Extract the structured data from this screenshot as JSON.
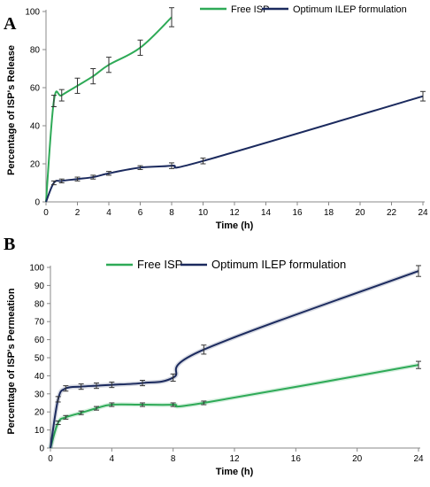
{
  "panels": [
    {
      "label": "A",
      "legend": [
        {
          "name": "Free ISP",
          "color": "#2eaa57"
        },
        {
          "name": "Optimum ILEP formulation",
          "color": "#1b2a5e"
        }
      ]
    },
    {
      "label": "B",
      "legend": [
        {
          "name": "Free ISP",
          "color": "#2eaa57"
        },
        {
          "name": "Optimum ILEP formulation",
          "color": "#1b2a5e"
        }
      ]
    }
  ],
  "chart_data": [
    {
      "type": "line",
      "panel": "A",
      "xlabel": "Time (h)",
      "ylabel": "Percentage of ISP's Release",
      "xlim": [
        0,
        24
      ],
      "ylim": [
        0,
        100
      ],
      "xticks": [
        0,
        2,
        4,
        6,
        8,
        10,
        12,
        14,
        16,
        18,
        20,
        22,
        24
      ],
      "yticks": [
        0,
        20,
        40,
        60,
        80,
        100
      ],
      "grid": false,
      "legend_position": "top",
      "series": [
        {
          "name": "Free ISP",
          "color": "#2eaa57",
          "x": [
            0,
            0.5,
            1,
            2,
            3,
            4,
            6,
            8
          ],
          "y": [
            0,
            53,
            56,
            61,
            66,
            72,
            81,
            97
          ],
          "error": [
            0,
            3,
            3,
            4,
            4,
            4,
            4,
            5
          ]
        },
        {
          "name": "Optimum ILEP formulation",
          "color": "#1b2a5e",
          "x": [
            0,
            0.5,
            1,
            2,
            3,
            4,
            6,
            8,
            10,
            24
          ],
          "y": [
            0,
            10,
            11,
            12,
            13,
            15,
            18,
            19,
            21.5,
            55.5
          ],
          "error": [
            0,
            1,
            1,
            1,
            1,
            1,
            1,
            1.5,
            1.5,
            2.5
          ]
        }
      ]
    },
    {
      "type": "line",
      "panel": "B",
      "xlabel": "Time (h)",
      "ylabel": "Percentage of ISP's Permeation",
      "xlim": [
        0,
        24
      ],
      "ylim": [
        0,
        100
      ],
      "xticks": [
        0,
        4,
        8,
        12,
        16,
        20,
        24
      ],
      "yticks": [
        0,
        10,
        20,
        30,
        40,
        50,
        60,
        70,
        80,
        90,
        100
      ],
      "grid": false,
      "legend_position": "top",
      "series": [
        {
          "name": "Free ISP",
          "color": "#2eaa57",
          "x": [
            0,
            0.5,
            1,
            2,
            3,
            4,
            6,
            8,
            10,
            24
          ],
          "y": [
            0,
            14,
            17,
            19.5,
            22,
            24,
            24,
            24,
            25,
            46
          ],
          "error": [
            0,
            1,
            1,
            1,
            1,
            1,
            1,
            1,
            1,
            2
          ]
        },
        {
          "name": "Optimum ILEP formulation",
          "color": "#1b2a5e",
          "x": [
            0,
            0.5,
            1,
            2,
            3,
            4,
            6,
            8,
            10,
            24
          ],
          "y": [
            0,
            27,
            33,
            34,
            34.5,
            35,
            36,
            39,
            54.5,
            98
          ],
          "error": [
            0,
            1.5,
            1.5,
            1.5,
            1.5,
            1.5,
            1.5,
            2,
            2.5,
            3
          ]
        }
      ]
    }
  ]
}
